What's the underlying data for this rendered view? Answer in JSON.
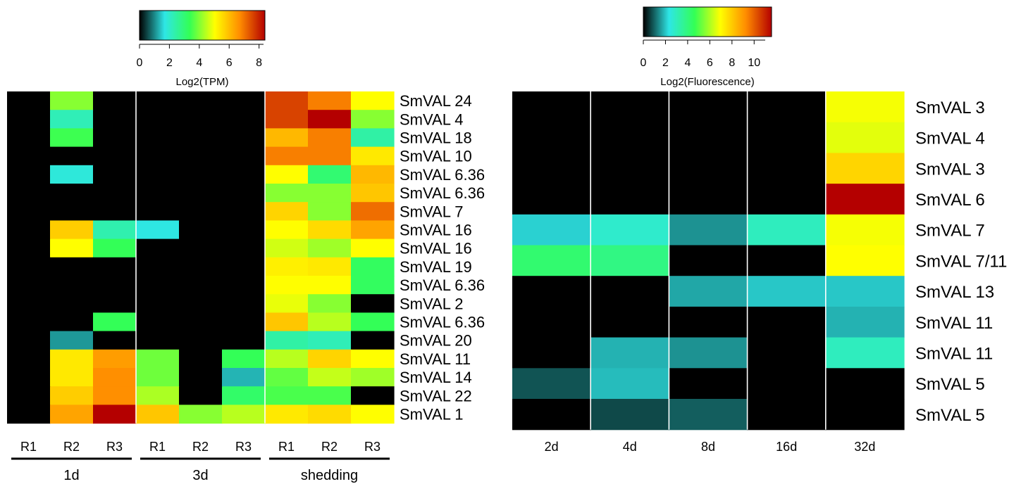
{
  "chart_data": [
    {
      "type": "heatmap",
      "title": "",
      "colorbar": {
        "label": "Log2(TPM)",
        "ticks": [
          0,
          2,
          4,
          6,
          8
        ],
        "range": [
          0,
          8.3
        ],
        "colors": [
          "#000000",
          "#2ee6e6",
          "#33ff55",
          "#ffff00",
          "#ff8c00",
          "#b40000"
        ]
      },
      "rows": [
        "SmVAL 24",
        "SmVAL 4",
        "SmVAL 18",
        "SmVAL 10",
        "SmVAL 6.36",
        "SmVAL 6.36",
        "SmVAL 7",
        "SmVAL 16",
        "SmVAL 16",
        "SmVAL 19",
        "SmVAL 6.36",
        "SmVAL 2",
        "SmVAL 6.36",
        "SmVAL 20",
        "SmVAL 11",
        "SmVAL 14",
        "SmVAL 22",
        "SmVAL 1"
      ],
      "columns": [
        "R1",
        "R2",
        "R3",
        "R1",
        "R2",
        "R3",
        "R1",
        "R2",
        "R3"
      ],
      "groups": [
        {
          "label": "1d",
          "columns": [
            0,
            1,
            2
          ]
        },
        {
          "label": "3d",
          "columns": [
            3,
            4,
            5
          ]
        },
        {
          "label": "shedding",
          "columns": [
            6,
            7,
            8
          ]
        }
      ],
      "values": [
        [
          0,
          4.0,
          0,
          0,
          0,
          0,
          7.5,
          6.8,
          5.0
        ],
        [
          0,
          2.2,
          0,
          0,
          0,
          0,
          7.5,
          8.3,
          4.0
        ],
        [
          0,
          3.4,
          0,
          0,
          0,
          0,
          6.0,
          6.8,
          2.4
        ],
        [
          0,
          0,
          0,
          0,
          0,
          0,
          6.8,
          6.8,
          5.3
        ],
        [
          0,
          1.8,
          0,
          0,
          0,
          0,
          5.0,
          3.0,
          6.0
        ],
        [
          0,
          0,
          0,
          0,
          0,
          0,
          4.0,
          4.0,
          5.8
        ],
        [
          0,
          0,
          0,
          0,
          0,
          0,
          5.6,
          4.0,
          7.0
        ],
        [
          0,
          5.7,
          2.3,
          1.7,
          0,
          0,
          5.0,
          5.5,
          6.3
        ],
        [
          0,
          5.0,
          3.3,
          0,
          0,
          0,
          4.6,
          4.2,
          5.0
        ],
        [
          0,
          0,
          0,
          0,
          0,
          0,
          5.2,
          5.3,
          3.2
        ],
        [
          0,
          0,
          0,
          0,
          0,
          0,
          5.0,
          5.0,
          3.2
        ],
        [
          0,
          0,
          0,
          0,
          0,
          0,
          4.8,
          4.0,
          0
        ],
        [
          0,
          0,
          3.3,
          0,
          0,
          0,
          5.8,
          4.4,
          3.3
        ],
        [
          0,
          1.1,
          0,
          0,
          0,
          0,
          2.4,
          2.2,
          0
        ],
        [
          0,
          5.3,
          6.4,
          3.8,
          0,
          3.3,
          4.4,
          5.6,
          5.0
        ],
        [
          0,
          5.3,
          6.6,
          3.8,
          0,
          1.3,
          3.7,
          4.5,
          4.2
        ],
        [
          0,
          5.7,
          6.6,
          4.3,
          0,
          3.1,
          3.5,
          3.5,
          0
        ],
        [
          0,
          6.3,
          8.3,
          5.8,
          4.0,
          4.4,
          5.3,
          5.5,
          5.0
        ]
      ]
    },
    {
      "type": "heatmap",
      "title": "",
      "colorbar": {
        "label": "Log2(Fluorescence)",
        "ticks": [
          0,
          2,
          4,
          6,
          8,
          10
        ],
        "range": [
          0,
          11
        ],
        "colors": [
          "#000000",
          "#2ee6e6",
          "#33ff55",
          "#ffff00",
          "#ff8c00",
          "#b40000"
        ]
      },
      "rows": [
        "SmVAL 3",
        "SmVAL 4",
        "SmVAL 3",
        "SmVAL 6",
        "SmVAL 7",
        "SmVAL 7/11",
        "SmVAL 13",
        "SmVAL 11",
        "SmVAL 11",
        "SmVAL 5",
        "SmVAL 5"
      ],
      "columns": [
        "2d",
        "4d",
        "8d",
        "16d",
        "32d"
      ],
      "values": [
        [
          0,
          0,
          0,
          0,
          6.5
        ],
        [
          0,
          0,
          0,
          0,
          6.3
        ],
        [
          0,
          0,
          0,
          0,
          7.4
        ],
        [
          0,
          0,
          0,
          0,
          11.0
        ],
        [
          2.0,
          2.6,
          1.4,
          2.8,
          6.5
        ],
        [
          4.0,
          3.7,
          0,
          0,
          6.6
        ],
        [
          0,
          0,
          1.6,
          1.9,
          1.9
        ],
        [
          0,
          0,
          0,
          0,
          1.7
        ],
        [
          0,
          1.7,
          1.4,
          0,
          2.8
        ],
        [
          0.8,
          1.8,
          0,
          0,
          0
        ],
        [
          0,
          0.7,
          0.9,
          0,
          0
        ]
      ]
    }
  ]
}
